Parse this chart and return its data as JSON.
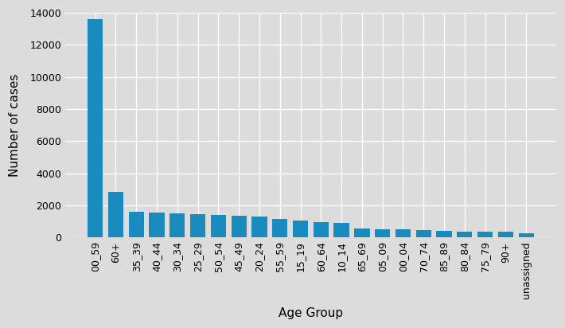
{
  "categories": [
    "00_59",
    "60+",
    "35_39",
    "40_44",
    "30_34",
    "25_29",
    "50_54",
    "45_49",
    "20_24",
    "55_59",
    "15_19",
    "60_64",
    "10_14",
    "65_69",
    "05_09",
    "00_04",
    "70_74",
    "85_89",
    "80_84",
    "75_79",
    "90+",
    "unassigned"
  ],
  "values": [
    13600,
    2850,
    1580,
    1570,
    1490,
    1450,
    1380,
    1360,
    1290,
    1180,
    1050,
    970,
    920,
    560,
    510,
    490,
    480,
    400,
    380,
    360,
    340,
    280
  ],
  "bar_color": "#1a8bbf",
  "xlabel": "Age Group",
  "ylabel": "Number of cases",
  "ylim": [
    0,
    14000
  ],
  "yticks": [
    0,
    2000,
    4000,
    6000,
    8000,
    10000,
    12000,
    14000
  ],
  "background_color": "#dcdcdc",
  "grid_color": "#ffffff",
  "axis_label_fontsize": 11,
  "tick_fontsize": 9
}
